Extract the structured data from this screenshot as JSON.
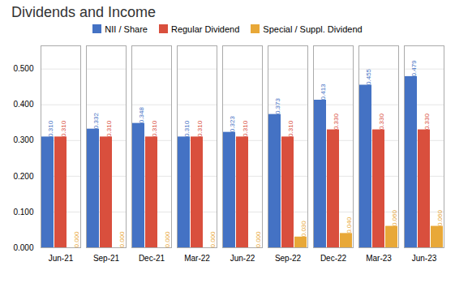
{
  "chart_data": {
    "type": "bar",
    "title": "Dividends and Income",
    "categories": [
      "Jun-21",
      "Sep-21",
      "Dec-21",
      "Mar-22",
      "Jun-22",
      "Sep-22",
      "Dec-22",
      "Mar-23",
      "Jun-23"
    ],
    "series": [
      {
        "name": "NII / Share",
        "color": "#4472C4",
        "values": [
          0.31,
          0.332,
          0.348,
          0.31,
          0.323,
          0.373,
          0.413,
          0.455,
          0.479
        ],
        "value_labels": [
          "0.310",
          "0.332",
          "0.348",
          "0.310",
          "0.323",
          "0.373",
          "0.413",
          "0.455",
          "0.479"
        ]
      },
      {
        "name": "Regular Dividend",
        "color": "#D94F3D",
        "values": [
          0.31,
          0.31,
          0.31,
          0.31,
          0.31,
          0.31,
          0.33,
          0.33,
          0.33
        ],
        "value_labels": [
          "0.310",
          "0.310",
          "0.310",
          "0.310",
          "0.310",
          "0.310",
          "0.330",
          "0.330",
          "0.330"
        ]
      },
      {
        "name": "Special / Suppl. Dividend",
        "color": "#E8A838",
        "values": [
          0.0,
          0.0,
          0.0,
          0.0,
          0.0,
          0.03,
          0.04,
          0.06,
          0.06
        ],
        "value_labels": [
          "0.000",
          "0.000",
          "0.000",
          "0.000",
          "0.000",
          "0.030",
          "0.040",
          "0.060",
          "0.060"
        ]
      }
    ],
    "ylim": [
      0.0,
      0.565
    ],
    "yticks": [
      {
        "value": 0,
        "label": "0.000"
      },
      {
        "value": 0.1,
        "label": "0.100"
      },
      {
        "value": 0.2,
        "label": "0.200"
      },
      {
        "value": 0.3,
        "label": "0.300"
      },
      {
        "value": 0.4,
        "label": "0.400"
      },
      {
        "value": 0.5,
        "label": "0.500"
      }
    ],
    "grid": true,
    "data_labels": true,
    "legend": "top"
  }
}
